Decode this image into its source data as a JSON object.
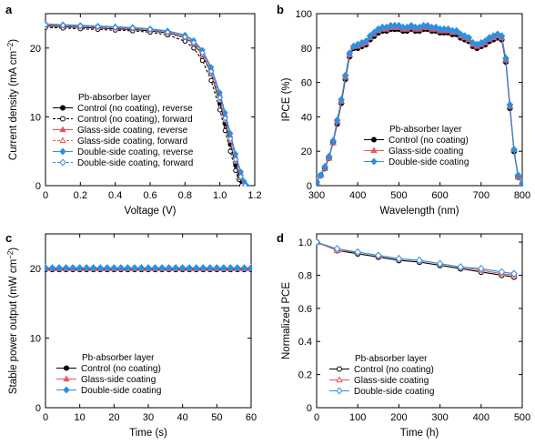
{
  "colors": {
    "black": "#000000",
    "red": "#e8555a",
    "blue": "#2f8fe0"
  },
  "chart_data": [
    {
      "panel": "a",
      "type": "line",
      "xlabel": "Voltage (V)",
      "ylabel": [
        "Current density (mA cm",
        "−2",
        ")"
      ],
      "xlim": [
        0,
        1.2
      ],
      "ylim": [
        0,
        25
      ],
      "xticks": [
        "0",
        "0.2",
        "0.4",
        "0.6",
        "0.8",
        "1.0",
        "1.2"
      ],
      "yticks": [
        "0",
        "10",
        "20"
      ],
      "legend_title": "Pb-absorber layer",
      "legend_position": "bottom-left",
      "series": [
        {
          "name": "Control (no coating), reverse",
          "color": "#000000",
          "marker": "circle",
          "filled": true,
          "dash": false,
          "x": [
            0,
            0.1,
            0.2,
            0.3,
            0.4,
            0.5,
            0.6,
            0.7,
            0.8,
            0.85,
            0.9,
            0.95,
            1.0,
            1.03,
            1.06,
            1.09,
            1.11,
            1.125,
            1.135
          ],
          "y": [
            23.2,
            23.1,
            23.0,
            22.9,
            22.8,
            22.7,
            22.5,
            22.2,
            21.5,
            20.6,
            19.0,
            16.3,
            12.0,
            9.0,
            6.0,
            3.0,
            1.5,
            0.6,
            0
          ]
        },
        {
          "name": "Control (no coating), forward",
          "color": "#000000",
          "marker": "circle",
          "filled": false,
          "dash": true,
          "x": [
            0,
            0.1,
            0.2,
            0.3,
            0.4,
            0.5,
            0.6,
            0.7,
            0.8,
            0.85,
            0.9,
            0.95,
            1.0,
            1.03,
            1.06,
            1.09,
            1.11,
            1.125
          ],
          "y": [
            23.0,
            22.9,
            22.8,
            22.7,
            22.6,
            22.5,
            22.3,
            21.9,
            21.0,
            20.0,
            18.2,
            15.3,
            11.0,
            8.0,
            5.0,
            2.2,
            0.9,
            0
          ]
        },
        {
          "name": "Glass-side coating, reverse",
          "color": "#e8555a",
          "marker": "triangle",
          "filled": true,
          "dash": false,
          "x": [
            0,
            0.1,
            0.2,
            0.3,
            0.4,
            0.5,
            0.6,
            0.7,
            0.8,
            0.85,
            0.9,
            0.95,
            1.0,
            1.03,
            1.06,
            1.09,
            1.12,
            1.14,
            1.15
          ],
          "y": [
            23.4,
            23.3,
            23.2,
            23.1,
            23.0,
            22.9,
            22.7,
            22.4,
            21.8,
            21.0,
            19.5,
            17.0,
            13.2,
            10.3,
            7.3,
            4.3,
            1.8,
            0.5,
            0
          ]
        },
        {
          "name": "Glass-side coating, forward",
          "color": "#e8555a",
          "marker": "triangle",
          "filled": false,
          "dash": true,
          "x": [
            0,
            0.1,
            0.2,
            0.3,
            0.4,
            0.5,
            0.6,
            0.7,
            0.8,
            0.85,
            0.9,
            0.95,
            1.0,
            1.03,
            1.06,
            1.09,
            1.12,
            1.14
          ],
          "y": [
            23.3,
            23.2,
            23.1,
            23.0,
            22.9,
            22.8,
            22.6,
            22.2,
            21.5,
            20.6,
            19.0,
            16.3,
            12.4,
            9.5,
            6.5,
            3.5,
            1.1,
            0
          ]
        },
        {
          "name": "Double-side coating, reverse",
          "color": "#2f8fe0",
          "marker": "diamond",
          "filled": true,
          "dash": false,
          "x": [
            0,
            0.1,
            0.2,
            0.3,
            0.4,
            0.5,
            0.6,
            0.7,
            0.8,
            0.85,
            0.9,
            0.95,
            1.0,
            1.03,
            1.06,
            1.09,
            1.12,
            1.14,
            1.155
          ],
          "y": [
            23.5,
            23.4,
            23.3,
            23.2,
            23.1,
            23.0,
            22.8,
            22.5,
            21.9,
            21.1,
            19.7,
            17.2,
            13.5,
            10.6,
            7.6,
            4.6,
            2.0,
            0.6,
            0
          ]
        },
        {
          "name": "Double-side coating, forward",
          "color": "#2f8fe0",
          "marker": "diamond",
          "filled": false,
          "dash": true,
          "x": [
            0,
            0.1,
            0.2,
            0.3,
            0.4,
            0.5,
            0.6,
            0.7,
            0.8,
            0.85,
            0.9,
            0.95,
            1.0,
            1.03,
            1.06,
            1.09,
            1.12,
            1.145
          ],
          "y": [
            23.4,
            23.3,
            23.2,
            23.1,
            23.0,
            22.9,
            22.7,
            22.3,
            21.6,
            20.8,
            19.3,
            16.6,
            12.8,
            9.8,
            6.8,
            3.8,
            1.3,
            0
          ]
        }
      ]
    },
    {
      "panel": "b",
      "type": "line",
      "xlabel": "Wavelength (nm)",
      "ylabel": [
        "IPCE (%)"
      ],
      "xlim": [
        300,
        800
      ],
      "ylim": [
        0,
        100
      ],
      "xticks": [
        "300",
        "400",
        "500",
        "600",
        "700",
        "800"
      ],
      "yticks": [
        "0",
        "20",
        "40",
        "60",
        "80",
        "100"
      ],
      "legend_title": "Pb-absorber layer",
      "legend_position": "bottom-center",
      "series": [
        {
          "name": "Control (no coating)",
          "color": "#000000",
          "marker": "circle",
          "filled": true,
          "dash": false,
          "x": [
            300,
            310,
            320,
            330,
            340,
            350,
            360,
            370,
            380,
            390,
            400,
            410,
            420,
            430,
            440,
            450,
            460,
            470,
            480,
            490,
            500,
            510,
            520,
            530,
            540,
            550,
            560,
            570,
            580,
            590,
            600,
            610,
            620,
            630,
            640,
            650,
            660,
            670,
            680,
            690,
            700,
            710,
            720,
            730,
            740,
            750,
            760,
            770,
            780,
            790,
            800
          ],
          "y": [
            2,
            6,
            10,
            16,
            25,
            36,
            48,
            62,
            75,
            80,
            80,
            81,
            82,
            85,
            87,
            89,
            90,
            90,
            91,
            91,
            91,
            90,
            90,
            91,
            90,
            90,
            91,
            91,
            90,
            90,
            89,
            89,
            89,
            88,
            88,
            86,
            85,
            84,
            81,
            80,
            81,
            82,
            84,
            85,
            86,
            85,
            72,
            45,
            20,
            5,
            1
          ]
        },
        {
          "name": "Glass-side coating",
          "color": "#e8555a",
          "marker": "triangle",
          "filled": true,
          "dash": false,
          "x": [
            300,
            310,
            320,
            330,
            340,
            350,
            360,
            370,
            380,
            390,
            400,
            410,
            420,
            430,
            440,
            450,
            460,
            470,
            480,
            490,
            500,
            510,
            520,
            530,
            540,
            550,
            560,
            570,
            580,
            590,
            600,
            610,
            620,
            630,
            640,
            650,
            660,
            670,
            680,
            690,
            700,
            710,
            720,
            730,
            740,
            750,
            760,
            770,
            780,
            790,
            800
          ],
          "y": [
            2,
            6,
            10,
            16,
            25,
            37,
            49,
            63,
            76,
            81,
            81,
            82,
            83,
            86,
            88,
            90,
            91,
            91,
            92,
            92,
            92,
            91,
            91,
            92,
            91,
            91,
            92,
            92,
            91,
            91,
            90,
            90,
            90,
            89,
            89,
            87,
            86,
            85,
            82,
            81,
            82,
            83,
            85,
            86,
            87,
            86,
            73,
            46,
            21,
            5,
            1
          ]
        },
        {
          "name": "Double-side coating",
          "color": "#2f8fe0",
          "marker": "diamond",
          "filled": true,
          "dash": false,
          "x": [
            300,
            310,
            320,
            330,
            340,
            350,
            360,
            370,
            380,
            390,
            400,
            410,
            420,
            430,
            440,
            450,
            460,
            470,
            480,
            490,
            500,
            510,
            520,
            530,
            540,
            550,
            560,
            570,
            580,
            590,
            600,
            610,
            620,
            630,
            640,
            650,
            660,
            670,
            680,
            690,
            700,
            710,
            720,
            730,
            740,
            750,
            760,
            770,
            780,
            790,
            800
          ],
          "y": [
            2,
            6,
            11,
            17,
            26,
            38,
            50,
            64,
            77,
            81,
            82,
            83,
            84,
            87,
            89,
            91,
            92,
            92,
            93,
            93,
            93,
            92,
            92,
            93,
            92,
            92,
            93,
            93,
            92,
            92,
            91,
            91,
            91,
            90,
            90,
            88,
            87,
            86,
            83,
            82,
            83,
            84,
            86,
            87,
            88,
            87,
            74,
            47,
            21,
            6,
            1
          ]
        }
      ]
    },
    {
      "panel": "c",
      "type": "line",
      "xlabel": "Time (s)",
      "ylabel": [
        "Stable power output (mW cm",
        "−2",
        ")"
      ],
      "xlim": [
        0,
        60
      ],
      "ylim": [
        0,
        25
      ],
      "xticks": [
        "0",
        "10",
        "20",
        "30",
        "40",
        "50",
        "60"
      ],
      "yticks": [
        "0",
        "10",
        "20"
      ],
      "legend_title": "Pb-absorber layer",
      "legend_position": "bottom-center",
      "series": [
        {
          "name": "Control (no coating)",
          "color": "#000000",
          "marker": "circle",
          "filled": true,
          "dash": false,
          "x": [
            0,
            2,
            4,
            6,
            8,
            10,
            12,
            14,
            16,
            18,
            20,
            22,
            24,
            26,
            28,
            30,
            32,
            34,
            36,
            38,
            40,
            42,
            44,
            46,
            48,
            50,
            52,
            54,
            56,
            58,
            60
          ],
          "y": [
            19.9,
            19.9,
            19.9,
            19.9,
            19.9,
            19.9,
            19.9,
            19.9,
            19.9,
            19.9,
            19.9,
            19.9,
            19.9,
            19.9,
            19.9,
            19.9,
            19.9,
            19.9,
            19.9,
            19.9,
            19.9,
            19.9,
            19.9,
            19.9,
            19.9,
            19.9,
            19.9,
            19.9,
            19.9,
            19.9,
            19.9
          ]
        },
        {
          "name": "Glass-side coating",
          "color": "#e8555a",
          "marker": "triangle",
          "filled": true,
          "dash": false,
          "x": [
            0,
            2,
            4,
            6,
            8,
            10,
            12,
            14,
            16,
            18,
            20,
            22,
            24,
            26,
            28,
            30,
            32,
            34,
            36,
            38,
            40,
            42,
            44,
            46,
            48,
            50,
            52,
            54,
            56,
            58,
            60
          ],
          "y": [
            20.0,
            20.0,
            20.0,
            20.0,
            20.0,
            20.0,
            20.0,
            20.0,
            20.0,
            20.0,
            20.0,
            20.0,
            20.0,
            20.0,
            20.0,
            20.0,
            20.0,
            20.0,
            20.0,
            20.0,
            20.0,
            20.0,
            20.0,
            20.0,
            20.0,
            20.0,
            20.0,
            20.0,
            20.0,
            20.0,
            20.0
          ]
        },
        {
          "name": "Double-side coating",
          "color": "#2f8fe0",
          "marker": "diamond",
          "filled": true,
          "dash": false,
          "x": [
            0,
            2,
            4,
            6,
            8,
            10,
            12,
            14,
            16,
            18,
            20,
            22,
            24,
            26,
            28,
            30,
            32,
            34,
            36,
            38,
            40,
            42,
            44,
            46,
            48,
            50,
            52,
            54,
            56,
            58,
            60
          ],
          "y": [
            20.1,
            20.1,
            20.1,
            20.1,
            20.1,
            20.1,
            20.1,
            20.1,
            20.1,
            20.1,
            20.1,
            20.1,
            20.1,
            20.1,
            20.1,
            20.1,
            20.1,
            20.1,
            20.1,
            20.1,
            20.1,
            20.1,
            20.1,
            20.1,
            20.1,
            20.1,
            20.1,
            20.1,
            20.1,
            20.1,
            20.1
          ]
        }
      ]
    },
    {
      "panel": "d",
      "type": "line",
      "xlabel": "Time (h)",
      "ylabel": [
        "Normalized PCE"
      ],
      "xlim": [
        0,
        500
      ],
      "ylim": [
        0,
        1.05
      ],
      "xticks": [
        "0",
        "100",
        "200",
        "300",
        "400",
        "500"
      ],
      "yticks": [
        "0",
        "0.2",
        "0.4",
        "0.6",
        "0.8",
        "1.0"
      ],
      "legend_title": "Pb-absorber layer",
      "legend_position": "bottom-center",
      "series": [
        {
          "name": "Control (no coating)",
          "color": "#000000",
          "marker": "circle",
          "filled": false,
          "dash": false,
          "x": [
            0,
            50,
            100,
            150,
            200,
            250,
            300,
            350,
            400,
            450,
            480
          ],
          "y": [
            1.0,
            0.95,
            0.93,
            0.91,
            0.89,
            0.88,
            0.86,
            0.84,
            0.82,
            0.8,
            0.79
          ]
        },
        {
          "name": "Glass-side coating",
          "color": "#e8555a",
          "marker": "triangle",
          "filled": false,
          "dash": false,
          "x": [
            0,
            50,
            100,
            150,
            200,
            250,
            300,
            350,
            400,
            450,
            480
          ],
          "y": [
            1.0,
            0.95,
            0.94,
            0.92,
            0.9,
            0.89,
            0.87,
            0.85,
            0.83,
            0.81,
            0.8
          ]
        },
        {
          "name": "Double-side coating",
          "color": "#2f8fe0",
          "marker": "diamond",
          "filled": false,
          "dash": false,
          "x": [
            0,
            50,
            100,
            150,
            200,
            250,
            300,
            350,
            400,
            450,
            480
          ],
          "y": [
            1.0,
            0.96,
            0.94,
            0.92,
            0.9,
            0.89,
            0.87,
            0.85,
            0.84,
            0.82,
            0.81
          ]
        }
      ]
    }
  ]
}
